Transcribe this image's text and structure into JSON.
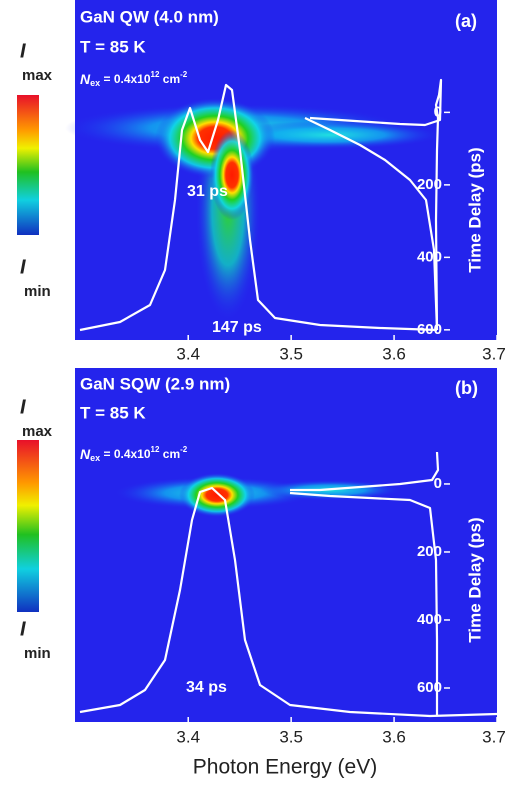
{
  "chart_data": [
    {
      "type": "heatmap",
      "title": "GaN QW (4.0 nm)",
      "temperature": "T = 85 K",
      "excitation": {
        "symbol": "N",
        "subscript": "ex",
        "text": " = 0.4x10",
        "exponent": "12",
        "unit": " cm",
        "unit_exponent": "-2"
      },
      "panel_label": "(a)",
      "annotations": [
        "31 ps",
        "147 ps"
      ],
      "y_label": "Time Delay (ps)",
      "xlim": [
        3.29,
        3.7
      ],
      "xticks": [
        3.4,
        3.5,
        3.6,
        3.7
      ],
      "ylim": [
        628,
        -310
      ],
      "yticks": [
        0,
        200,
        400,
        600
      ],
      "colorbar": {
        "symbol": "I",
        "max": "max",
        "min": "min"
      }
    },
    {
      "type": "heatmap",
      "title": "GaN SQW (2.9 nm)",
      "temperature": "T = 85 K",
      "excitation": {
        "symbol": "N",
        "subscript": "ex",
        "text": " = 0.4x10",
        "exponent": "12",
        "unit": " cm",
        "unit_exponent": "-2"
      },
      "panel_label": "(b)",
      "annotations": [
        "34 ps"
      ],
      "y_label": "Time Delay (ps)",
      "xlim": [
        3.29,
        3.7
      ],
      "xticks": [
        3.4,
        3.5,
        3.6,
        3.7
      ],
      "ylim": [
        700,
        -341
      ],
      "yticks": [
        0,
        200,
        400,
        600
      ],
      "colorbar": {
        "symbol": "I",
        "max": "max",
        "min": "min"
      }
    }
  ],
  "x_label": "Photon Energy (eV)"
}
